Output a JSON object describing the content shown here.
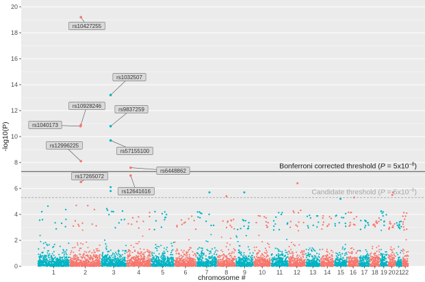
{
  "chart_data": {
    "type": "scatter",
    "subtype": "manhattan",
    "xlabel": "chromosome #",
    "ylabel": "-log10(P)",
    "ylim": [
      0,
      20
    ],
    "yticks": [
      0,
      2,
      4,
      6,
      8,
      10,
      12,
      14,
      16,
      18,
      20
    ],
    "chromosomes": [
      {
        "label": "1",
        "start": 0,
        "end": 248,
        "color": "teal",
        "peak": 4.9
      },
      {
        "label": "2",
        "start": 248,
        "end": 490,
        "color": "salmon",
        "peak": 4.7
      },
      {
        "label": "3",
        "start": 490,
        "end": 688,
        "color": "teal",
        "peak": 4.8
      },
      {
        "label": "4",
        "start": 688,
        "end": 878,
        "color": "salmon",
        "peak": 4.6
      },
      {
        "label": "5",
        "start": 878,
        "end": 1059,
        "color": "teal",
        "peak": 4.3
      },
      {
        "label": "6",
        "start": 1059,
        "end": 1230,
        "color": "salmon",
        "peak": 4.1
      },
      {
        "label": "7",
        "start": 1230,
        "end": 1389,
        "color": "teal",
        "peak": 4.2
      },
      {
        "label": "8",
        "start": 1389,
        "end": 1534,
        "color": "salmon",
        "peak": 4.3
      },
      {
        "label": "9",
        "start": 1534,
        "end": 1672,
        "color": "teal",
        "peak": 4.0
      },
      {
        "label": "10",
        "start": 1672,
        "end": 1806,
        "color": "salmon",
        "peak": 4.1
      },
      {
        "label": "11",
        "start": 1806,
        "end": 1941,
        "color": "teal",
        "peak": 4.2
      },
      {
        "label": "12",
        "start": 1941,
        "end": 2074,
        "color": "salmon",
        "peak": 4.4
      },
      {
        "label": "13",
        "start": 2074,
        "end": 2189,
        "color": "teal",
        "peak": 4.0
      },
      {
        "label": "14",
        "start": 2189,
        "end": 2296,
        "color": "salmon",
        "peak": 4.1
      },
      {
        "label": "15",
        "start": 2296,
        "end": 2398,
        "color": "teal",
        "peak": 4.2
      },
      {
        "label": "16",
        "start": 2398,
        "end": 2488,
        "color": "salmon",
        "peak": 4.3
      },
      {
        "label": "17",
        "start": 2488,
        "end": 2571,
        "color": "teal",
        "peak": 3.9
      },
      {
        "label": "18",
        "start": 2571,
        "end": 2651,
        "color": "salmon",
        "peak": 3.8
      },
      {
        "label": "19",
        "start": 2651,
        "end": 2710,
        "color": "teal",
        "peak": 4.3
      },
      {
        "label": "20",
        "start": 2710,
        "end": 2774,
        "color": "salmon",
        "peak": 3.9
      },
      {
        "label": "21",
        "start": 2774,
        "end": 2821,
        "color": "teal",
        "peak": 3.6
      },
      {
        "label": "22",
        "start": 2821,
        "end": 2872,
        "color": "salmon",
        "peak": 4.2
      }
    ],
    "outliers": [
      {
        "chr": "7",
        "pos": 1330,
        "y": 5.7,
        "color": "teal"
      },
      {
        "chr": "8",
        "pos": 1462,
        "y": 5.4,
        "color": "salmon"
      },
      {
        "chr": "9",
        "pos": 1600,
        "y": 5.7,
        "color": "teal"
      },
      {
        "chr": "12",
        "pos": 2012,
        "y": 6.4,
        "color": "salmon"
      },
      {
        "chr": "15",
        "pos": 2345,
        "y": 5.2,
        "color": "teal"
      },
      {
        "chr": "16",
        "pos": 2450,
        "y": 5.3,
        "color": "salmon"
      },
      {
        "chr": "20",
        "pos": 2746,
        "y": 5.5,
        "color": "salmon"
      },
      {
        "chr": "20",
        "pos": 2752,
        "y": 5.7,
        "color": "salmon"
      },
      {
        "chr": "3",
        "pos": 565,
        "y": 6.1,
        "color": "teal"
      },
      {
        "chr": "3",
        "pos": 565,
        "y": 5.8,
        "color": "teal"
      }
    ],
    "annotated_snps": [
      {
        "id": "rs10427255",
        "chr": "2",
        "pos": 335,
        "y": 19.2,
        "color": "salmon"
      },
      {
        "id": "rs1032507",
        "chr": "3",
        "pos": 565,
        "y": 13.2,
        "color": "teal"
      },
      {
        "id": "rs10928246",
        "chr": "2",
        "pos": 335,
        "y": 10.9,
        "color": "salmon"
      },
      {
        "id": "rs1040173",
        "chr": "2",
        "pos": 332,
        "y": 10.8,
        "color": "salmon"
      },
      {
        "id": "rs9837259",
        "chr": "3",
        "pos": 565,
        "y": 10.8,
        "color": "teal"
      },
      {
        "id": "rs57155100",
        "chr": "3",
        "pos": 565,
        "y": 9.7,
        "color": "teal"
      },
      {
        "id": "rs12996225",
        "chr": "2",
        "pos": 335,
        "y": 8.1,
        "color": "salmon"
      },
      {
        "id": "rs6448862",
        "chr": "4",
        "pos": 720,
        "y": 7.6,
        "color": "salmon"
      },
      {
        "id": "rs17265072",
        "chr": "2",
        "pos": 335,
        "y": 6.5,
        "color": "salmon"
      },
      {
        "id": "rs12641616",
        "chr": "4",
        "pos": 720,
        "y": 7.0,
        "color": "salmon"
      }
    ],
    "thresholds": [
      {
        "name": "bonferroni",
        "y": 7.3,
        "style": "solid",
        "label_text": "Bonferroni corrected threshold (",
        "label_var": "P",
        "label_eq": " = 5x10",
        "label_exp": "−8",
        "label_close": ")"
      },
      {
        "name": "candidate",
        "y": 5.3,
        "style": "dashed",
        "label_text": "Candidate threshold (",
        "label_var": "P",
        "label_eq": " = 5x10",
        "label_exp": "−6",
        "label_close": ")"
      }
    ],
    "colors": {
      "teal": "#00b4c4",
      "salmon": "#f8766d",
      "panel": "#ebebeb",
      "grid": "#ffffff",
      "bonferroni_line": "#4d4d4d",
      "candidate_line": "#a6a6a6"
    }
  }
}
